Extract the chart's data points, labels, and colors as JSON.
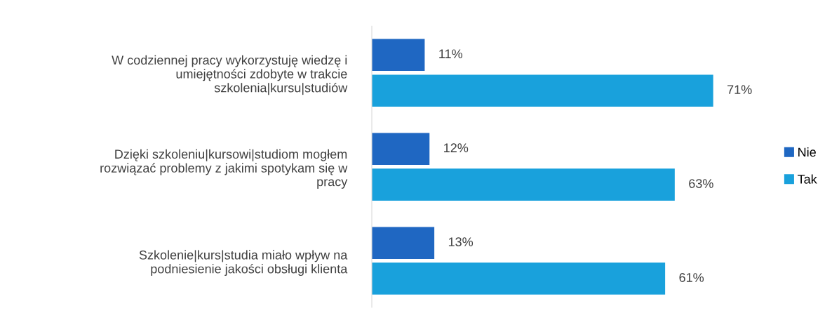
{
  "chart_data": {
    "type": "bar",
    "orientation": "horizontal",
    "categories": [
      "W codziennej pracy wykorzystuję wiedzę i\numiejętności zdobyte w trakcie\nszkolenia|kursu|studiów",
      "Dzięki szkoleniu|kursowi|studiom mogłem\nrozwiązać problemy z jakimi spotykam się w\npracy",
      "Szkolenie|kurs|studia miało wpływ na\npodniesienie jakości obsługi klienta"
    ],
    "series": [
      {
        "name": "Nie",
        "color": "#1f67c2",
        "values": [
          11,
          12,
          13
        ],
        "value_labels": [
          "11%",
          "12%",
          "13%"
        ]
      },
      {
        "name": "Tak",
        "color": "#19a1dc",
        "values": [
          71,
          63,
          61
        ],
        "value_labels": [
          "71%",
          "63%",
          "61%"
        ]
      }
    ],
    "tick_labels": "y",
    "grid": false,
    "legend": "right"
  }
}
